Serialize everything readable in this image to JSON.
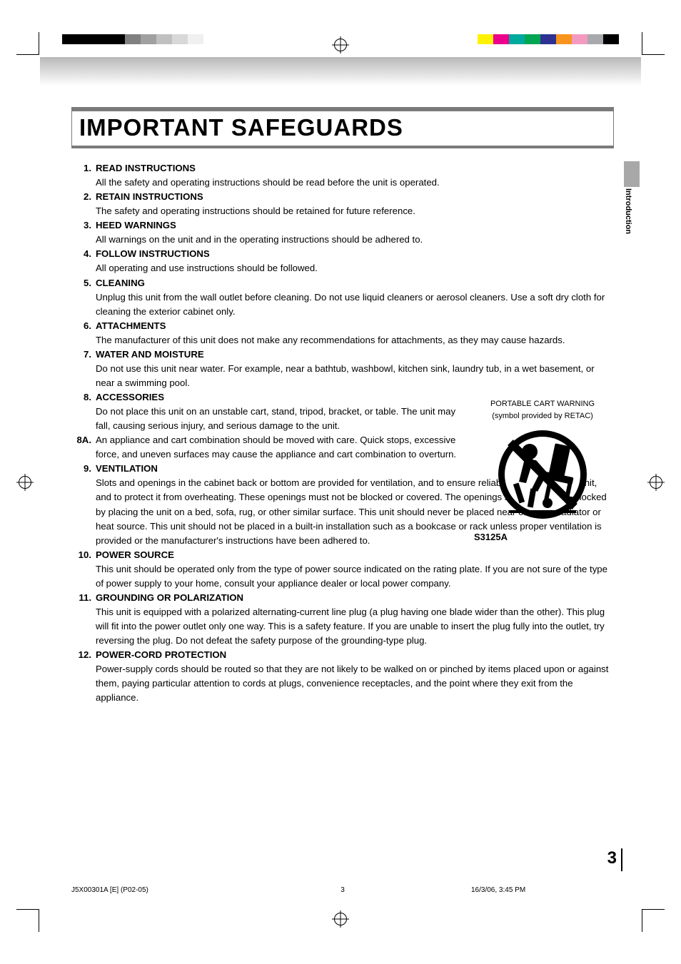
{
  "document": {
    "title": "IMPORTANT SAFEGUARDS",
    "side_tab": "Introduction",
    "page_number": "3",
    "footer": {
      "doc_id": "J5X00301A [E] (P02-05)",
      "page": "3",
      "timestamp": "16/3/06, 3:45 PM"
    }
  },
  "colors": {
    "title_rule": "#7a7a7a",
    "side_tab_gray": "#a8a8a8",
    "text": "#000000",
    "background": "#ffffff"
  },
  "print_marks": {
    "left_bar_colors": [
      "#000000",
      "#000000",
      "#000000",
      "#000000",
      "#808080",
      "#a0a0a0",
      "#c0c0c0",
      "#d8d8d8",
      "#f0f0f0"
    ],
    "right_bar_colors": [
      "#fff200",
      "#ec008c",
      "#00a99d",
      "#00a651",
      "#2e3192",
      "#f7941d",
      "#f49ac1",
      "#a7a9ac",
      "#000000"
    ]
  },
  "cart_warning": {
    "line1": "PORTABLE CART WARNING",
    "line2": "(symbol provided by RETAC)",
    "label": "S3125A"
  },
  "items": [
    {
      "num": "1.",
      "title": "READ INSTRUCTIONS",
      "text": "All the safety and operating instructions should be read before the unit is operated."
    },
    {
      "num": "2.",
      "title": "RETAIN INSTRUCTIONS",
      "text": "The safety and operating instructions should be retained for future reference."
    },
    {
      "num": "3.",
      "title": "HEED WARNINGS",
      "text": "All warnings on the unit and in the operating instructions should be adhered to."
    },
    {
      "num": "4.",
      "title": "FOLLOW INSTRUCTIONS",
      "text": "All operating and use instructions should be followed."
    },
    {
      "num": "5.",
      "title": "CLEANING",
      "text": "Unplug this unit from the wall outlet before cleaning. Do not use liquid cleaners or aerosol cleaners. Use a soft dry cloth for cleaning the exterior cabinet only."
    },
    {
      "num": "6.",
      "title": "ATTACHMENTS",
      "text": "The manufacturer of this unit does not make any recommendations for attachments, as they may cause hazards."
    },
    {
      "num": "7.",
      "title": "WATER AND MOISTURE",
      "text": "Do not use this unit near water. For example, near a bathtub, washbowl, kitchen sink, laundry tub, in a wet basement, or near a swimming pool."
    },
    {
      "num": "8.",
      "title": "ACCESSORIES",
      "text": "Do not place this unit on an unstable cart, stand, tripod, bracket, or table. The unit may fall, causing serious injury, and serious damage to the unit."
    },
    {
      "num": "8A.",
      "title": "",
      "text": "An appliance and cart combination should be moved with care. Quick stops, excessive force, and uneven surfaces may cause the appliance and cart combination to overturn."
    },
    {
      "num": "9.",
      "title": "VENTILATION",
      "text": "Slots and openings in the cabinet back or bottom are provided for ventilation, and to ensure reliable operation of the unit, and to protect it from overheating. These openings must not be blocked or covered. The openings should never be blocked by placing the unit on a bed, sofa, rug, or other similar surface. This unit should never be placed near or over a radiator or heat source. This unit should not be placed in a built-in installation such as a bookcase or rack unless proper ventilation is provided or the manufacturer's instructions have been adhered to."
    },
    {
      "num": "10.",
      "title": "POWER SOURCE",
      "text": "This unit should be operated only from the type of power source indicated on the rating plate. If you are not sure of the type of power supply to your home, consult your appliance dealer or local power company."
    },
    {
      "num": "11.",
      "title": "GROUNDING OR POLARIZATION",
      "text": "This unit is equipped with a polarized alternating-current line plug (a plug having one blade wider than the other). This plug will fit into the power outlet only one way. This is a safety feature. If you are unable to insert the plug fully into the outlet, try reversing the plug. Do not defeat the safety purpose of the grounding-type plug."
    },
    {
      "num": "12.",
      "title": "POWER-CORD PROTECTION",
      "text": "Power-supply cords should be routed so that they are not likely to be walked on or pinched by items placed upon or against them, paying particular attention to cords at plugs, convenience receptacles, and the point where they exit from the appliance."
    }
  ]
}
